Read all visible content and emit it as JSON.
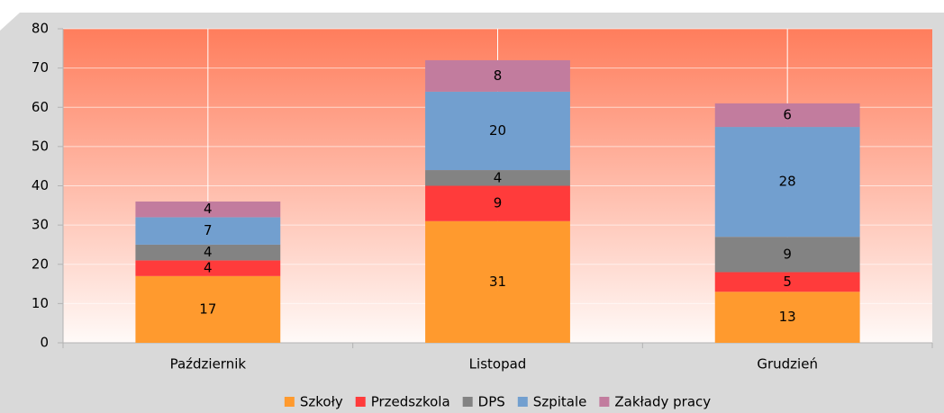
{
  "chart_data": {
    "type": "stacked_bar",
    "categories": [
      "Październik",
      "Listopad",
      "Grudzień"
    ],
    "series": [
      {
        "name": "Szkoły",
        "color": "#ff9a2e",
        "values": [
          17,
          31,
          13
        ]
      },
      {
        "name": "Przedszkola",
        "color": "#ff3b3b",
        "values": [
          4,
          9,
          5
        ]
      },
      {
        "name": "DPS",
        "color": "#838383",
        "values": [
          4,
          4,
          9
        ]
      },
      {
        "name": "Szpitale",
        "color": "#729fcf",
        "values": [
          7,
          20,
          28
        ]
      },
      {
        "name": "Zakłady pracy",
        "color": "#c27c9e",
        "values": [
          4,
          8,
          6
        ]
      }
    ],
    "ylim": [
      0,
      80
    ],
    "yticks": [
      0,
      10,
      20,
      30,
      40,
      50,
      60,
      70,
      80
    ],
    "grid": true,
    "legend": "bottom"
  }
}
